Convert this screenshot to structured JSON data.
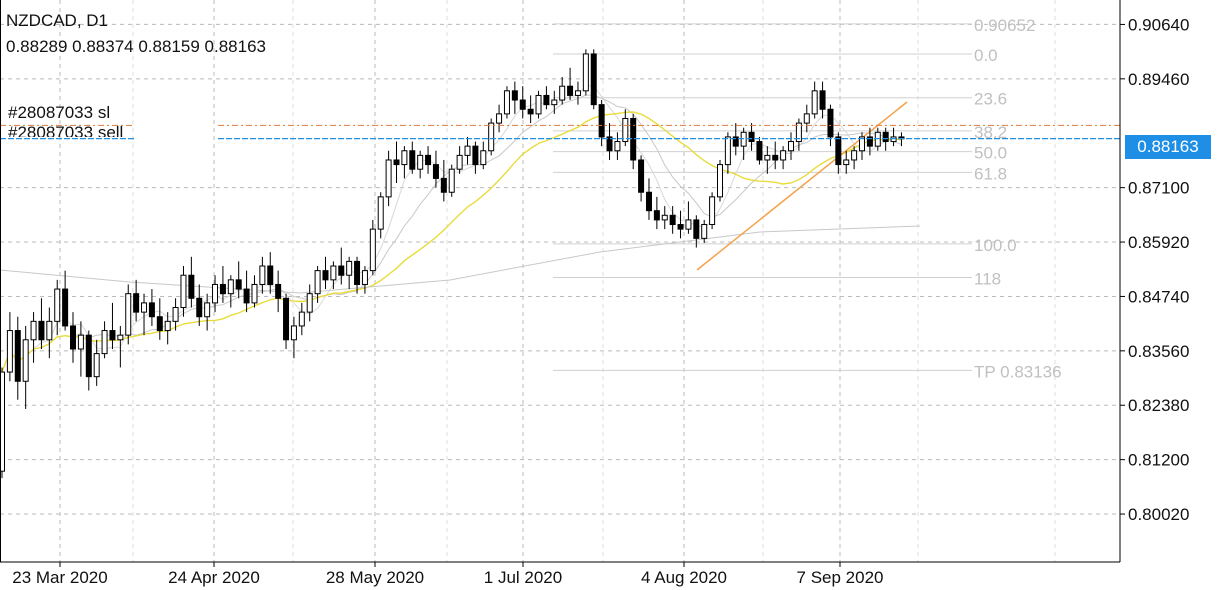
{
  "header": {
    "symbol": "NZDCAD, D1",
    "ohlc": "0.88289 0.88374 0.88159 0.88163"
  },
  "orders": {
    "sl_label": "#28087033 sl",
    "sell_label": "#28087033 sell"
  },
  "current_price": "0.88163",
  "colors": {
    "bid_line": "#1f8fe6",
    "sl_line": "#e2773a",
    "trend_line": "#f5a14a",
    "ma_fast": "#e8dc3c",
    "ma_slow": "#c8c8c8",
    "grid": "#bbbbbb",
    "fib_text": "#c0c0c0"
  },
  "chart_data": {
    "type": "candlestick",
    "symbol": "NZDCAD",
    "timeframe": "D1",
    "x_ticks": [
      "23 Mar 2020",
      "24 Apr 2020",
      "28 May 2020",
      "1 Jul 2020",
      "4 Aug 2020",
      "7 Sep 2020"
    ],
    "y_ticks": [
      0.9064,
      0.8946,
      0.871,
      0.8592,
      0.8474,
      0.8356,
      0.8238,
      0.812,
      0.8002
    ],
    "ylim": [
      0.7898,
      0.9117
    ],
    "grid": true,
    "current_price": 0.88163,
    "fibonacci": {
      "levels": [
        {
          "label": "0.90652",
          "price": 0.90652
        },
        {
          "label": "0.0",
          "price": 0.9
        },
        {
          "label": "23.6",
          "price": 0.8905
        },
        {
          "label": "38.2",
          "price": 0.8833
        },
        {
          "label": "50.0",
          "price": 0.8788
        },
        {
          "label": "61.8",
          "price": 0.8743
        },
        {
          "label": "100.0",
          "price": 0.8588
        },
        {
          "label": "118",
          "price": 0.8515
        },
        {
          "label": "TP 0.83136",
          "price": 0.83136
        }
      ]
    },
    "order_lines": [
      {
        "label": "#28087033 sl",
        "price": 0.8845
      },
      {
        "label": "#28087033 sell",
        "price": 0.8817
      }
    ],
    "trend_line": {
      "from": {
        "x": "4 Aug 2020",
        "price": 0.8575
      },
      "to": {
        "x": "7 Sep 2020",
        "price": 0.8903
      }
    },
    "candles": [
      [
        0.8095,
        0.832,
        0.808,
        0.831
      ],
      [
        0.831,
        0.844,
        0.829,
        0.84
      ],
      [
        0.84,
        0.843,
        0.825,
        0.829
      ],
      [
        0.829,
        0.841,
        0.823,
        0.838
      ],
      [
        0.838,
        0.844,
        0.833,
        0.842
      ],
      [
        0.842,
        0.847,
        0.836,
        0.838
      ],
      [
        0.838,
        0.845,
        0.834,
        0.842
      ],
      [
        0.842,
        0.851,
        0.839,
        0.849
      ],
      [
        0.849,
        0.853,
        0.84,
        0.841
      ],
      [
        0.841,
        0.844,
        0.833,
        0.836
      ],
      [
        0.836,
        0.842,
        0.83,
        0.839
      ],
      [
        0.839,
        0.84,
        0.827,
        0.83
      ],
      [
        0.83,
        0.838,
        0.828,
        0.835
      ],
      [
        0.835,
        0.842,
        0.834,
        0.84
      ],
      [
        0.84,
        0.846,
        0.836,
        0.838
      ],
      [
        0.838,
        0.841,
        0.832,
        0.839
      ],
      [
        0.839,
        0.85,
        0.837,
        0.848
      ],
      [
        0.848,
        0.851,
        0.842,
        0.844
      ],
      [
        0.844,
        0.848,
        0.839,
        0.846
      ],
      [
        0.846,
        0.849,
        0.841,
        0.843
      ],
      [
        0.843,
        0.847,
        0.838,
        0.84
      ],
      [
        0.84,
        0.844,
        0.837,
        0.842
      ],
      [
        0.842,
        0.847,
        0.84,
        0.845
      ],
      [
        0.845,
        0.854,
        0.843,
        0.852
      ],
      [
        0.852,
        0.856,
        0.845,
        0.847
      ],
      [
        0.847,
        0.85,
        0.841,
        0.843
      ],
      [
        0.843,
        0.848,
        0.84,
        0.846
      ],
      [
        0.846,
        0.852,
        0.844,
        0.85
      ],
      [
        0.85,
        0.854,
        0.846,
        0.848
      ],
      [
        0.848,
        0.852,
        0.845,
        0.851
      ],
      [
        0.851,
        0.855,
        0.847,
        0.849
      ],
      [
        0.849,
        0.853,
        0.844,
        0.846
      ],
      [
        0.846,
        0.852,
        0.845,
        0.85
      ],
      [
        0.85,
        0.856,
        0.848,
        0.854
      ],
      [
        0.854,
        0.857,
        0.848,
        0.85
      ],
      [
        0.85,
        0.853,
        0.844,
        0.847
      ],
      [
        0.847,
        0.848,
        0.836,
        0.838
      ],
      [
        0.838,
        0.843,
        0.834,
        0.841
      ],
      [
        0.841,
        0.846,
        0.839,
        0.844
      ],
      [
        0.844,
        0.85,
        0.842,
        0.848
      ],
      [
        0.848,
        0.854,
        0.846,
        0.853
      ],
      [
        0.853,
        0.856,
        0.849,
        0.851
      ],
      [
        0.851,
        0.855,
        0.849,
        0.854
      ],
      [
        0.854,
        0.858,
        0.85,
        0.852
      ],
      [
        0.852,
        0.856,
        0.849,
        0.855
      ],
      [
        0.855,
        0.856,
        0.848,
        0.85
      ],
      [
        0.85,
        0.854,
        0.848,
        0.853
      ],
      [
        0.853,
        0.864,
        0.852,
        0.862
      ],
      [
        0.862,
        0.87,
        0.86,
        0.869
      ],
      [
        0.869,
        0.879,
        0.867,
        0.877
      ],
      [
        0.877,
        0.881,
        0.872,
        0.876
      ],
      [
        0.876,
        0.88,
        0.873,
        0.879
      ],
      [
        0.879,
        0.881,
        0.874,
        0.875
      ],
      [
        0.875,
        0.879,
        0.873,
        0.878
      ],
      [
        0.878,
        0.88,
        0.874,
        0.876
      ],
      [
        0.876,
        0.879,
        0.871,
        0.873
      ],
      [
        0.873,
        0.877,
        0.868,
        0.87
      ],
      [
        0.87,
        0.876,
        0.869,
        0.875
      ],
      [
        0.875,
        0.88,
        0.874,
        0.878
      ],
      [
        0.878,
        0.882,
        0.876,
        0.88
      ],
      [
        0.88,
        0.881,
        0.874,
        0.876
      ],
      [
        0.876,
        0.881,
        0.875,
        0.879
      ],
      [
        0.879,
        0.886,
        0.878,
        0.885
      ],
      [
        0.885,
        0.889,
        0.883,
        0.887
      ],
      [
        0.887,
        0.893,
        0.886,
        0.892
      ],
      [
        0.892,
        0.894,
        0.887,
        0.89
      ],
      [
        0.89,
        0.893,
        0.886,
        0.888
      ],
      [
        0.888,
        0.891,
        0.885,
        0.887
      ],
      [
        0.887,
        0.892,
        0.886,
        0.891
      ],
      [
        0.891,
        0.893,
        0.888,
        0.889
      ],
      [
        0.889,
        0.892,
        0.887,
        0.89
      ],
      [
        0.89,
        0.895,
        0.889,
        0.893
      ],
      [
        0.893,
        0.897,
        0.89,
        0.891
      ],
      [
        0.891,
        0.894,
        0.889,
        0.892
      ],
      [
        0.892,
        0.901,
        0.891,
        0.9
      ],
      [
        0.9,
        0.901,
        0.888,
        0.889
      ],
      [
        0.889,
        0.89,
        0.88,
        0.882
      ],
      [
        0.882,
        0.885,
        0.877,
        0.879
      ],
      [
        0.879,
        0.883,
        0.877,
        0.881
      ],
      [
        0.881,
        0.888,
        0.88,
        0.886
      ],
      [
        0.886,
        0.887,
        0.875,
        0.877
      ],
      [
        0.877,
        0.878,
        0.868,
        0.87
      ],
      [
        0.87,
        0.873,
        0.864,
        0.866
      ],
      [
        0.866,
        0.869,
        0.862,
        0.864
      ],
      [
        0.864,
        0.867,
        0.862,
        0.865
      ],
      [
        0.865,
        0.867,
        0.861,
        0.863
      ],
      [
        0.863,
        0.866,
        0.86,
        0.862
      ],
      [
        0.862,
        0.868,
        0.861,
        0.864
      ],
      [
        0.864,
        0.865,
        0.858,
        0.86
      ],
      [
        0.86,
        0.864,
        0.859,
        0.863
      ],
      [
        0.863,
        0.87,
        0.862,
        0.869
      ],
      [
        0.869,
        0.877,
        0.868,
        0.876
      ],
      [
        0.876,
        0.883,
        0.874,
        0.882
      ],
      [
        0.882,
        0.885,
        0.878,
        0.88
      ],
      [
        0.88,
        0.884,
        0.877,
        0.883
      ],
      [
        0.883,
        0.885,
        0.879,
        0.881
      ],
      [
        0.881,
        0.882,
        0.876,
        0.877
      ],
      [
        0.877,
        0.88,
        0.874,
        0.878
      ],
      [
        0.878,
        0.881,
        0.875,
        0.877
      ],
      [
        0.877,
        0.88,
        0.875,
        0.879
      ],
      [
        0.879,
        0.883,
        0.877,
        0.881
      ],
      [
        0.881,
        0.886,
        0.879,
        0.885
      ],
      [
        0.885,
        0.889,
        0.883,
        0.887
      ],
      [
        0.887,
        0.894,
        0.886,
        0.892
      ],
      [
        0.892,
        0.894,
        0.886,
        0.888
      ],
      [
        0.888,
        0.889,
        0.88,
        0.882
      ],
      [
        0.882,
        0.883,
        0.874,
        0.876
      ],
      [
        0.876,
        0.879,
        0.874,
        0.877
      ],
      [
        0.877,
        0.88,
        0.875,
        0.879
      ],
      [
        0.879,
        0.883,
        0.877,
        0.882
      ],
      [
        0.882,
        0.884,
        0.878,
        0.88
      ],
      [
        0.88,
        0.884,
        0.879,
        0.883
      ],
      [
        0.883,
        0.884,
        0.879,
        0.881
      ],
      [
        0.881,
        0.884,
        0.88,
        0.882
      ],
      [
        0.882,
        0.883,
        0.88,
        0.8816
      ]
    ]
  }
}
